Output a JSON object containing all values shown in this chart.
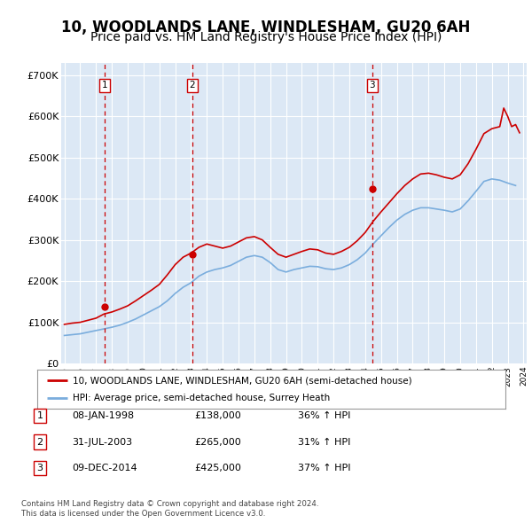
{
  "title": "10, WOODLANDS LANE, WINDLESHAM, GU20 6AH",
  "subtitle": "Price paid vs. HM Land Registry's House Price Index (HPI)",
  "title_fontsize": 12,
  "subtitle_fontsize": 10,
  "ylabel_ticks": [
    "£0",
    "£100K",
    "£200K",
    "£300K",
    "£400K",
    "£500K",
    "£600K",
    "£700K"
  ],
  "ytick_values": [
    0,
    100000,
    200000,
    300000,
    400000,
    500000,
    600000,
    700000
  ],
  "ylim": [
    0,
    730000
  ],
  "xlim_start": 1995.3,
  "xlim_end": 2024.7,
  "background_color": "#dce8f5",
  "plot_bg_color": "#dce8f5",
  "grid_color": "#ffffff",
  "red_line_color": "#cc0000",
  "blue_line_color": "#7aaddd",
  "transactions": [
    {
      "num": 1,
      "date": "08-JAN-1998",
      "year": 1998.03,
      "price": 138000,
      "hpi_pct": "36% ↑ HPI"
    },
    {
      "num": 2,
      "date": "31-JUL-2003",
      "year": 2003.58,
      "price": 265000,
      "hpi_pct": "31% ↑ HPI"
    },
    {
      "num": 3,
      "date": "09-DEC-2014",
      "year": 2014.94,
      "price": 425000,
      "hpi_pct": "37% ↑ HPI"
    }
  ],
  "legend_line1": "10, WOODLANDS LANE, WINDLESHAM, GU20 6AH (semi-detached house)",
  "legend_line2": "HPI: Average price, semi-detached house, Surrey Heath",
  "footer1": "Contains HM Land Registry data © Crown copyright and database right 2024.",
  "footer2": "This data is licensed under the Open Government Licence v3.0.",
  "hpi_data_x": [
    1995.5,
    1996.0,
    1996.5,
    1997.0,
    1997.5,
    1998.0,
    1998.5,
    1999.0,
    1999.5,
    2000.0,
    2000.5,
    2001.0,
    2001.5,
    2002.0,
    2002.5,
    2003.0,
    2003.5,
    2004.0,
    2004.5,
    2005.0,
    2005.5,
    2006.0,
    2006.5,
    2007.0,
    2007.5,
    2008.0,
    2008.5,
    2009.0,
    2009.5,
    2010.0,
    2010.5,
    2011.0,
    2011.5,
    2012.0,
    2012.5,
    2013.0,
    2013.5,
    2014.0,
    2014.5,
    2015.0,
    2015.5,
    2016.0,
    2016.5,
    2017.0,
    2017.5,
    2018.0,
    2018.5,
    2019.0,
    2019.5,
    2020.0,
    2020.5,
    2021.0,
    2021.5,
    2022.0,
    2022.5,
    2023.0,
    2023.5,
    2024.0
  ],
  "hpi_data_y": [
    68000,
    70000,
    72000,
    76000,
    80000,
    84000,
    88000,
    93000,
    100000,
    108000,
    118000,
    128000,
    138000,
    152000,
    170000,
    185000,
    196000,
    212000,
    222000,
    228000,
    232000,
    238000,
    248000,
    258000,
    262000,
    258000,
    245000,
    228000,
    222000,
    228000,
    232000,
    236000,
    235000,
    230000,
    228000,
    232000,
    240000,
    252000,
    268000,
    290000,
    310000,
    330000,
    348000,
    362000,
    372000,
    378000,
    378000,
    375000,
    372000,
    368000,
    375000,
    395000,
    418000,
    442000,
    448000,
    445000,
    438000,
    432000
  ],
  "price_data_x": [
    1995.5,
    1996.0,
    1996.5,
    1997.0,
    1997.5,
    1998.0,
    1998.5,
    1999.0,
    1999.5,
    2000.0,
    2000.5,
    2001.0,
    2001.5,
    2002.0,
    2002.5,
    2003.0,
    2003.5,
    2004.0,
    2004.5,
    2005.0,
    2005.5,
    2006.0,
    2006.5,
    2007.0,
    2007.5,
    2008.0,
    2008.5,
    2009.0,
    2009.5,
    2010.0,
    2010.5,
    2011.0,
    2011.5,
    2012.0,
    2012.5,
    2013.0,
    2013.5,
    2014.0,
    2014.5,
    2015.0,
    2015.5,
    2016.0,
    2016.5,
    2017.0,
    2017.5,
    2018.0,
    2018.5,
    2019.0,
    2019.5,
    2020.0,
    2020.5,
    2021.0,
    2021.5,
    2022.0,
    2022.5,
    2023.0,
    2023.25,
    2023.5,
    2023.75,
    2024.0,
    2024.25
  ],
  "price_data_y": [
    95000,
    98000,
    100000,
    105000,
    110000,
    120000,
    125000,
    132000,
    140000,
    152000,
    165000,
    178000,
    192000,
    215000,
    240000,
    258000,
    268000,
    282000,
    290000,
    285000,
    280000,
    285000,
    295000,
    305000,
    308000,
    300000,
    282000,
    265000,
    258000,
    265000,
    272000,
    278000,
    276000,
    268000,
    265000,
    272000,
    282000,
    298000,
    318000,
    345000,
    368000,
    390000,
    412000,
    432000,
    448000,
    460000,
    462000,
    458000,
    452000,
    448000,
    458000,
    485000,
    520000,
    558000,
    570000,
    575000,
    620000,
    600000,
    575000,
    580000,
    560000
  ],
  "transaction_dot_prices": [
    138000,
    265000,
    425000
  ]
}
